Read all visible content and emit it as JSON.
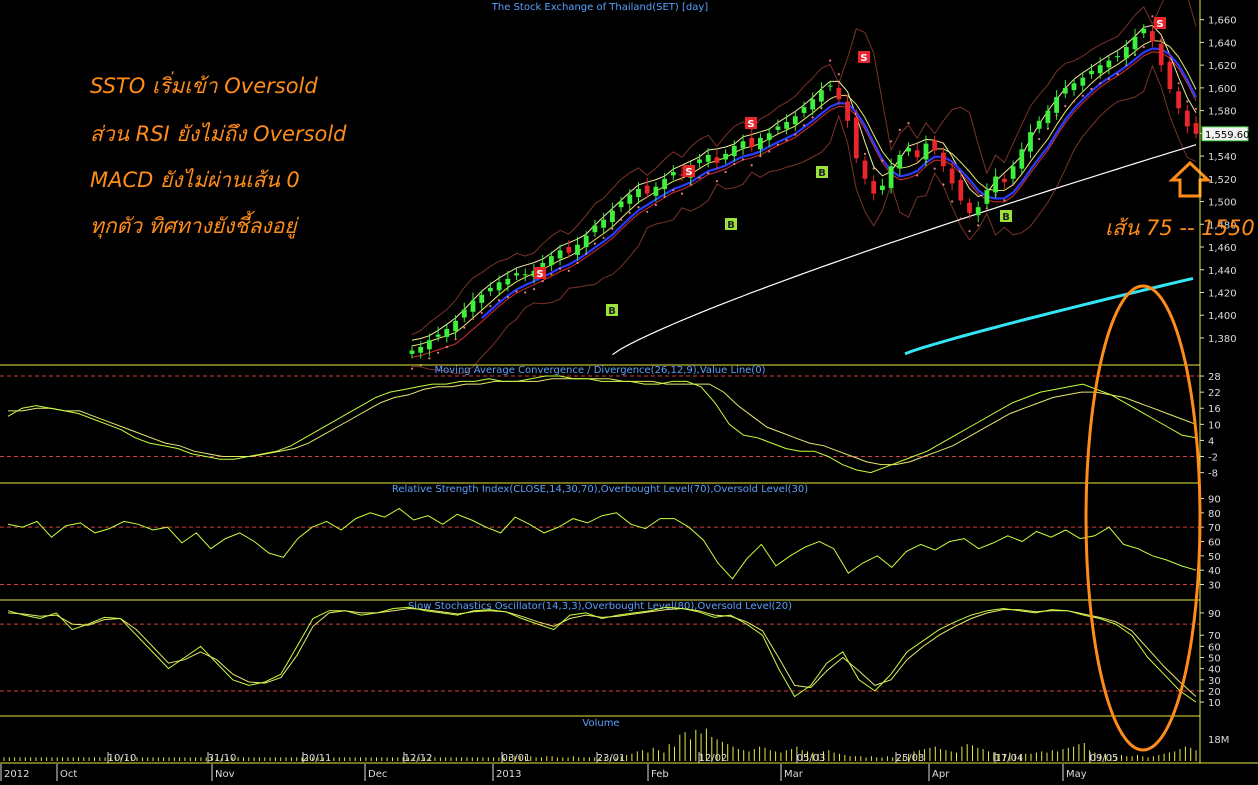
{
  "chart_data": [
    {
      "type": "candlestick",
      "title": "The Stock Exchange of Thailand(SET) [day]",
      "ylim": [
        1365,
        1665
      ],
      "y_ticks": [
        1380,
        1400,
        1420,
        1440,
        1460,
        1480,
        1500,
        1520,
        1540,
        1560,
        1580,
        1600,
        1620,
        1640,
        1660
      ],
      "last_price": "1,559.60",
      "close_series": [
        1369,
        1372,
        1378,
        1383,
        1388,
        1395,
        1405,
        1413,
        1418,
        1424,
        1429,
        1432,
        1437,
        1436,
        1439,
        1446,
        1452,
        1457,
        1455,
        1462,
        1470,
        1479,
        1484,
        1492,
        1500,
        1506,
        1511,
        1507,
        1513,
        1520,
        1526,
        1523,
        1531,
        1537,
        1541,
        1534,
        1542,
        1549,
        1553,
        1548,
        1556,
        1560,
        1566,
        1570,
        1575,
        1583,
        1590,
        1598,
        1602,
        1590,
        1571,
        1538,
        1520,
        1507,
        1514,
        1531,
        1541,
        1547,
        1539,
        1551,
        1545,
        1531,
        1516,
        1501,
        1490,
        1495,
        1510,
        1522,
        1517,
        1531,
        1546,
        1561,
        1571,
        1580,
        1592,
        1600,
        1604,
        1609,
        1615,
        1620,
        1624,
        1628,
        1636,
        1645,
        1652,
        1641,
        1620,
        1599,
        1582,
        1566,
        1559.6
      ],
      "middle_band_line_color": "#2a3cff",
      "long_ma_line_color": "#ffffff",
      "longest_ma_line_color": "#33e5f5",
      "signals": [
        {
          "label": "S",
          "type": "sell",
          "color": "#e8262b"
        },
        {
          "label": "S",
          "type": "sell",
          "color": "#e8262b"
        },
        {
          "label": "S",
          "type": "sell",
          "color": "#e8262b"
        },
        {
          "label": "S",
          "type": "sell",
          "color": "#e8262b"
        },
        {
          "label": "S",
          "type": "sell",
          "color": "#e8262b"
        },
        {
          "label": "B",
          "type": "buy",
          "color": "#9be23a"
        },
        {
          "label": "B",
          "type": "buy",
          "color": "#9be23a"
        },
        {
          "label": "B",
          "type": "buy",
          "color": "#9be23a"
        },
        {
          "label": "B",
          "type": "buy",
          "color": "#9be23a"
        },
        {
          "label": "B",
          "type": "buy",
          "color": "#9be23a"
        }
      ]
    },
    {
      "type": "line",
      "title": "Moving Average Convergence / Divergence(26,12,9),Value Line(0)",
      "ylim": [
        -10,
        31
      ],
      "y_ticks": [
        "28",
        "22",
        "16",
        "10",
        "4",
        "-2",
        "-8"
      ],
      "reference_lines": [
        28,
        -2
      ],
      "macd": [
        13,
        16,
        17,
        16,
        15,
        14,
        12,
        10,
        8,
        5,
        3,
        2,
        1,
        -1,
        -2,
        -3,
        -3,
        -2,
        -1,
        0,
        2,
        5,
        8,
        11,
        14,
        17,
        20,
        22,
        23,
        24,
        25,
        25,
        26,
        26,
        27,
        26,
        26,
        27,
        28,
        28,
        27,
        27,
        26,
        26,
        26,
        25,
        25,
        26,
        26,
        24,
        18,
        10,
        6,
        5,
        3,
        1,
        0,
        0,
        -2,
        -5,
        -7,
        -8,
        -6,
        -4,
        -2,
        0,
        3,
        6,
        9,
        12,
        15,
        18,
        20,
        22,
        23,
        24,
        25,
        23,
        21,
        18,
        15,
        12,
        9,
        6,
        5
      ],
      "signal": [
        15,
        15,
        16,
        16,
        15,
        15,
        13,
        11,
        9,
        7,
        5,
        3,
        2,
        0,
        -1,
        -2,
        -2,
        -2,
        -1,
        0,
        1,
        3,
        6,
        9,
        12,
        15,
        18,
        20,
        21,
        23,
        24,
        24,
        25,
        25,
        26,
        26,
        26,
        26,
        27,
        27,
        27,
        27,
        27,
        26,
        26,
        26,
        25,
        25,
        25,
        25,
        22,
        17,
        13,
        9,
        7,
        5,
        3,
        2,
        0,
        -2,
        -4,
        -5,
        -5,
        -4,
        -2,
        0,
        2,
        5,
        8,
        11,
        14,
        16,
        18,
        20,
        21,
        22,
        22,
        21,
        20,
        18,
        16,
        14,
        12,
        10
      ]
    },
    {
      "type": "line",
      "title": "Relative Strength Index(CLOSE,14,30,70),Overbought Level(70),Oversold Level(30)",
      "ylim": [
        22,
        98
      ],
      "y_ticks": [
        "90",
        "80",
        "70",
        "60",
        "50",
        "40",
        "30"
      ],
      "reference_lines": [
        70,
        30
      ],
      "rsi": [
        72,
        70,
        74,
        63,
        71,
        73,
        66,
        69,
        74,
        72,
        68,
        70,
        59,
        66,
        55,
        62,
        66,
        60,
        52,
        49,
        62,
        70,
        74,
        68,
        76,
        80,
        77,
        83,
        75,
        78,
        72,
        79,
        75,
        70,
        66,
        77,
        72,
        66,
        70,
        76,
        73,
        78,
        80,
        72,
        69,
        76,
        76,
        70,
        61,
        45,
        34,
        48,
        58,
        43,
        50,
        56,
        60,
        55,
        38,
        45,
        50,
        42,
        53,
        58,
        54,
        60,
        62,
        55,
        59,
        64,
        60,
        67,
        63,
        68,
        62,
        64,
        70,
        58,
        55,
        50,
        47,
        43,
        40
      ]
    },
    {
      "type": "line",
      "title": "Slow Stochastics Oscillator(14,3,3),Overbought Level(80),Oversold Level(20)",
      "ylim": [
        2,
        98
      ],
      "y_ticks": [
        "90",
        "70",
        "60",
        "50",
        "40",
        "30",
        "20",
        "10"
      ],
      "reference_lines": [
        80,
        20
      ],
      "k": [
        92,
        88,
        85,
        90,
        75,
        80,
        86,
        85,
        70,
        55,
        40,
        50,
        60,
        45,
        30,
        25,
        28,
        35,
        60,
        85,
        92,
        92,
        88,
        90,
        94,
        95,
        92,
        90,
        88,
        92,
        93,
        91,
        85,
        80,
        75,
        88,
        90,
        85,
        88,
        90,
        92,
        95,
        94,
        91,
        86,
        88,
        80,
        70,
        40,
        15,
        25,
        45,
        55,
        30,
        20,
        35,
        55,
        65,
        75,
        82,
        88,
        92,
        94,
        92,
        90,
        93,
        92,
        88,
        85,
        80,
        70,
        50,
        35,
        20,
        10
      ],
      "d": [
        90,
        89,
        87,
        88,
        80,
        79,
        84,
        85,
        75,
        60,
        45,
        48,
        55,
        48,
        35,
        28,
        27,
        32,
        52,
        78,
        90,
        92,
        90,
        90,
        92,
        94,
        93,
        91,
        89,
        91,
        92,
        91,
        87,
        82,
        78,
        85,
        88,
        86,
        87,
        89,
        91,
        93,
        94,
        92,
        88,
        87,
        82,
        74,
        50,
        25,
        23,
        38,
        50,
        38,
        25,
        30,
        48,
        60,
        70,
        78,
        85,
        90,
        93,
        93,
        91,
        92,
        92,
        89,
        86,
        82,
        74,
        58,
        42,
        28,
        15
      ]
    },
    {
      "type": "bar",
      "title": "Volume",
      "y_ticks": [
        "18M"
      ],
      "volume_levels": [
        3,
        3,
        3,
        3,
        3,
        3,
        3,
        3,
        3,
        3,
        3,
        3,
        3,
        3,
        3,
        3,
        3,
        3,
        3,
        3,
        3,
        3,
        3,
        3,
        3,
        3,
        3,
        3,
        3,
        3,
        3,
        3,
        3,
        3,
        3,
        3,
        3,
        3,
        3,
        3,
        3,
        3,
        3,
        3,
        3,
        3,
        3,
        3,
        3,
        3,
        3,
        3,
        3,
        3,
        3,
        3,
        3,
        3,
        3,
        3,
        3,
        3,
        3,
        3,
        3,
        3,
        3,
        3,
        3,
        3,
        3,
        3,
        3,
        3,
        3,
        3,
        3,
        3,
        3,
        3,
        3,
        3,
        3,
        3,
        3,
        3,
        3,
        3,
        3,
        3,
        3,
        3,
        3,
        3,
        3,
        4,
        4,
        4,
        4,
        4,
        3,
        3,
        4,
        4,
        3,
        3,
        3,
        4,
        3,
        3,
        3,
        3,
        3,
        3,
        3,
        3,
        4,
        5,
        6,
        8,
        9,
        7,
        11,
        9,
        7,
        14,
        12,
        22,
        24,
        18,
        26,
        23,
        27,
        20,
        18,
        16,
        14,
        12,
        10,
        9,
        8,
        10,
        12,
        11,
        9,
        8,
        7,
        9,
        10,
        12,
        9,
        8,
        7,
        6,
        8,
        9,
        7,
        6,
        5,
        4,
        4,
        4,
        3,
        4,
        3,
        3,
        4,
        3,
        3,
        3,
        6,
        8,
        9,
        10,
        11,
        12,
        10,
        9,
        8,
        7,
        12,
        14,
        13,
        11,
        10,
        8,
        7,
        6,
        6,
        7,
        6,
        5,
        6,
        6,
        7,
        8,
        7,
        9,
        8,
        10,
        11,
        12,
        14,
        15,
        9,
        7,
        6,
        6,
        5,
        4,
        5,
        4,
        4,
        5,
        4,
        3,
        4,
        5,
        6,
        7,
        8,
        10,
        12,
        11,
        9
      ]
    }
  ],
  "time_axis": {
    "day_labels": [
      "10/10",
      "31/10",
      "20/11",
      "12/12",
      "03/01",
      "23/01",
      "12/02",
      "05/03",
      "25/03",
      "17/04",
      "09/05"
    ],
    "month_labels": [
      "2012",
      "Oct",
      "Nov",
      "Dec",
      "2013",
      "Feb",
      "Mar",
      "Apr",
      "May"
    ]
  },
  "annotations": {
    "line1": "SSTO เริ่มเข้า Oversold",
    "line2": "ส่วน RSI ยังไม่ถึง Oversold",
    "line3": "MACD ยังไม่ผ่านเส้น 0",
    "line4": "ทุกตัว ทิศทางยังชี้ลงอยู่",
    "ma_label": "เส้น 75 -- 1550"
  },
  "colors": {
    "background": "#000000",
    "panel_border": "#e8e840",
    "panel_title": "#5aa0ff",
    "axis_text": "#dcdcdc",
    "candle_up": "#3cf03c",
    "candle_down": "#e8262b",
    "bands": "#7a3328",
    "indicator_primary": "#c8ff3a",
    "indicator_secondary": "#e8e870",
    "ref_line": "#d64040",
    "annotation": "#ff8c1a"
  }
}
